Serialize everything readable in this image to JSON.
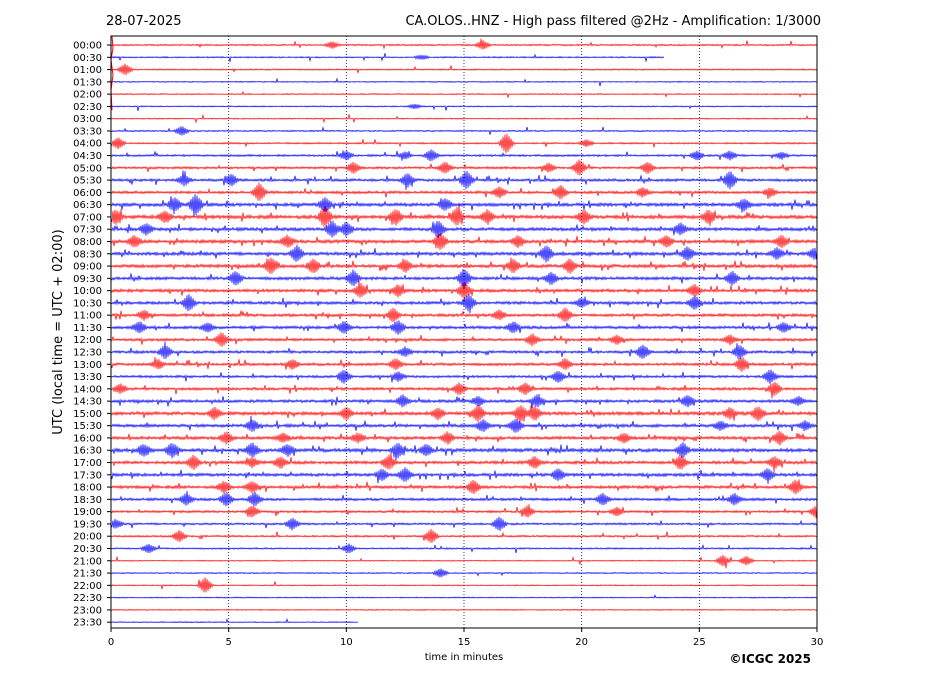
{
  "header": {
    "date": "28-07-2025",
    "title": "CA.OLOS..HNZ - High pass filtered @2Hz - Amplification: 1/3000"
  },
  "footer": {
    "copyright": "©ICGC 2025"
  },
  "colors": {
    "trace_even": "#ff0000",
    "trace_odd": "#0000ff",
    "grid": "#000080",
    "axis": "#000000"
  },
  "chart_data": {
    "type": "line",
    "title": "CA.OLOS..HNZ - High pass filtered @2Hz - Amplification: 1/3000",
    "xlabel": "time in minutes",
    "ylabel": "UTC (local time = UTC + 02:00)",
    "xlim": [
      0,
      30
    ],
    "x_ticks": [
      "0",
      "5",
      "10",
      "15",
      "20",
      "25",
      "30"
    ],
    "grid_x": [
      5,
      10,
      15,
      20,
      25
    ],
    "grid_style": "dotted vertical",
    "series_colors_alternate": [
      "red",
      "blue"
    ],
    "rows": [
      {
        "label": "00:00",
        "level": 0.2,
        "events": [
          [
            9.4,
            0.3
          ],
          [
            15.8,
            0.4
          ]
        ]
      },
      {
        "label": "00:30",
        "level": 0.15,
        "end": 23.5,
        "events": [
          [
            13.2,
            0.2
          ]
        ]
      },
      {
        "label": "01:00",
        "level": 0.15,
        "events": [
          [
            0.6,
            0.5
          ]
        ]
      },
      {
        "label": "01:30",
        "level": 0.1,
        "events": []
      },
      {
        "label": "02:00",
        "level": 0.1,
        "events": []
      },
      {
        "label": "02:30",
        "level": 0.1,
        "events": [
          [
            12.9,
            0.2
          ]
        ]
      },
      {
        "label": "03:00",
        "level": 0.1,
        "events": []
      },
      {
        "label": "03:30",
        "level": 0.15,
        "events": [
          [
            3.0,
            0.4
          ]
        ]
      },
      {
        "label": "04:00",
        "level": 0.2,
        "events": [
          [
            0.3,
            0.5
          ],
          [
            16.8,
            0.9
          ],
          [
            20.2,
            0.3
          ]
        ]
      },
      {
        "label": "04:30",
        "level": 0.3,
        "events": [
          [
            10.0,
            0.4
          ],
          [
            12.5,
            0.3
          ],
          [
            13.6,
            0.5
          ],
          [
            24.9,
            0.4
          ],
          [
            26.3,
            0.4
          ],
          [
            28.5,
            0.3
          ]
        ]
      },
      {
        "label": "05:00",
        "level": 0.35,
        "events": [
          [
            10.3,
            0.5
          ],
          [
            14.2,
            0.5
          ],
          [
            18.6,
            0.4
          ],
          [
            19.9,
            0.7
          ],
          [
            22.8,
            0.5
          ]
        ]
      },
      {
        "label": "05:30",
        "level": 0.45,
        "events": [
          [
            3.1,
            0.5
          ],
          [
            5.1,
            0.5
          ],
          [
            12.6,
            0.6
          ],
          [
            15.1,
            0.8
          ],
          [
            26.3,
            0.8
          ]
        ]
      },
      {
        "label": "06:00",
        "level": 0.45,
        "events": [
          [
            6.3,
            0.8
          ],
          [
            16.5,
            0.5
          ],
          [
            19.1,
            0.6
          ],
          [
            22.6,
            0.4
          ],
          [
            28.0,
            0.4
          ]
        ]
      },
      {
        "label": "06:30",
        "level": 0.6,
        "events": [
          [
            2.7,
            0.6
          ],
          [
            3.6,
            0.9
          ],
          [
            9.1,
            0.6
          ],
          [
            14.2,
            0.5
          ],
          [
            26.9,
            0.5
          ]
        ]
      },
      {
        "label": "07:00",
        "level": 0.65,
        "events": [
          [
            0.2,
            0.6
          ],
          [
            2.3,
            0.5
          ],
          [
            9.1,
            0.9
          ],
          [
            12.1,
            0.7
          ],
          [
            14.7,
            0.8
          ],
          [
            16.0,
            0.6
          ],
          [
            20.1,
            0.6
          ],
          [
            25.4,
            0.6
          ]
        ]
      },
      {
        "label": "07:30",
        "level": 0.6,
        "events": [
          [
            1.5,
            0.5
          ],
          [
            9.4,
            0.7
          ],
          [
            10.0,
            0.6
          ],
          [
            13.9,
            0.7
          ],
          [
            24.2,
            0.5
          ]
        ]
      },
      {
        "label": "08:00",
        "level": 0.6,
        "events": [
          [
            1.0,
            0.5
          ],
          [
            7.5,
            0.5
          ],
          [
            14.0,
            0.7
          ],
          [
            17.3,
            0.5
          ],
          [
            23.6,
            0.5
          ],
          [
            28.5,
            0.5
          ]
        ]
      },
      {
        "label": "08:30",
        "level": 0.6,
        "events": [
          [
            7.9,
            0.7
          ],
          [
            18.5,
            0.7
          ],
          [
            24.5,
            0.6
          ],
          [
            28.3,
            0.5
          ],
          [
            29.9,
            0.5
          ]
        ]
      },
      {
        "label": "09:00",
        "level": 0.6,
        "events": [
          [
            6.8,
            0.7
          ],
          [
            8.6,
            0.6
          ],
          [
            12.5,
            0.5
          ],
          [
            17.1,
            0.6
          ],
          [
            19.5,
            0.6
          ]
        ]
      },
      {
        "label": "09:30",
        "level": 0.55,
        "events": [
          [
            5.3,
            0.6
          ],
          [
            10.3,
            0.7
          ],
          [
            15.0,
            0.8
          ],
          [
            18.7,
            0.5
          ],
          [
            26.4,
            0.6
          ]
        ]
      },
      {
        "label": "10:00",
        "level": 0.55,
        "events": [
          [
            10.6,
            0.6
          ],
          [
            12.2,
            0.5
          ],
          [
            15.0,
            0.7
          ],
          [
            24.8,
            0.5
          ]
        ]
      },
      {
        "label": "10:30",
        "level": 0.5,
        "events": [
          [
            3.3,
            0.7
          ],
          [
            15.2,
            0.7
          ],
          [
            20.0,
            0.4
          ],
          [
            24.8,
            0.6
          ]
        ]
      },
      {
        "label": "11:00",
        "level": 0.5,
        "events": [
          [
            1.4,
            0.4
          ],
          [
            12.0,
            0.6
          ],
          [
            16.5,
            0.4
          ],
          [
            19.3,
            0.6
          ]
        ]
      },
      {
        "label": "11:30",
        "level": 0.5,
        "events": [
          [
            1.2,
            0.5
          ],
          [
            4.1,
            0.4
          ],
          [
            9.9,
            0.5
          ],
          [
            12.2,
            0.6
          ],
          [
            17.1,
            0.5
          ],
          [
            28.6,
            0.4
          ]
        ]
      },
      {
        "label": "12:00",
        "level": 0.45,
        "events": [
          [
            4.7,
            0.6
          ],
          [
            17.9,
            0.5
          ],
          [
            21.5,
            0.4
          ],
          [
            26.3,
            0.4
          ]
        ]
      },
      {
        "label": "12:30",
        "level": 0.45,
        "events": [
          [
            2.3,
            0.6
          ],
          [
            12.5,
            0.4
          ],
          [
            22.6,
            0.6
          ],
          [
            26.7,
            0.6
          ]
        ]
      },
      {
        "label": "13:00",
        "level": 0.45,
        "events": [
          [
            2.0,
            0.4
          ],
          [
            7.7,
            0.4
          ],
          [
            12.1,
            0.5
          ],
          [
            19.3,
            0.5
          ],
          [
            26.8,
            0.6
          ]
        ]
      },
      {
        "label": "13:30",
        "level": 0.4,
        "events": [
          [
            9.9,
            0.6
          ],
          [
            12.2,
            0.4
          ],
          [
            19.0,
            0.5
          ],
          [
            28.0,
            0.6
          ]
        ]
      },
      {
        "label": "14:00",
        "level": 0.45,
        "events": [
          [
            0.4,
            0.4
          ],
          [
            14.8,
            0.5
          ],
          [
            17.6,
            0.5
          ],
          [
            28.2,
            0.6
          ]
        ]
      },
      {
        "label": "14:30",
        "level": 0.5,
        "events": [
          [
            12.4,
            0.5
          ],
          [
            15.6,
            0.4
          ],
          [
            18.1,
            0.5
          ],
          [
            24.5,
            0.5
          ],
          [
            29.2,
            0.4
          ]
        ]
      },
      {
        "label": "15:00",
        "level": 0.6,
        "events": [
          [
            4.4,
            0.5
          ],
          [
            10.0,
            0.5
          ],
          [
            13.9,
            0.5
          ],
          [
            15.6,
            0.7
          ],
          [
            17.4,
            0.7
          ],
          [
            18.0,
            0.6
          ],
          [
            26.3,
            0.5
          ],
          [
            27.5,
            0.6
          ]
        ]
      },
      {
        "label": "15:30",
        "level": 0.55,
        "events": [
          [
            6.0,
            0.5
          ],
          [
            15.8,
            0.5
          ],
          [
            17.2,
            0.6
          ],
          [
            25.9,
            0.4
          ],
          [
            29.5,
            0.4
          ]
        ]
      },
      {
        "label": "16:00",
        "level": 0.55,
        "events": [
          [
            4.9,
            0.5
          ],
          [
            7.3,
            0.4
          ],
          [
            10.5,
            0.4
          ],
          [
            14.3,
            0.5
          ],
          [
            21.8,
            0.4
          ],
          [
            28.4,
            0.6
          ]
        ]
      },
      {
        "label": "16:30",
        "level": 0.65,
        "events": [
          [
            1.4,
            0.5
          ],
          [
            2.6,
            0.6
          ],
          [
            6.0,
            0.6
          ],
          [
            7.5,
            0.5
          ],
          [
            12.2,
            0.6
          ],
          [
            13.4,
            0.5
          ],
          [
            24.3,
            0.6
          ]
        ]
      },
      {
        "label": "17:00",
        "level": 0.55,
        "events": [
          [
            3.5,
            0.6
          ],
          [
            6.0,
            0.4
          ],
          [
            7.2,
            0.5
          ],
          [
            11.8,
            0.6
          ],
          [
            18.0,
            0.5
          ],
          [
            24.2,
            0.6
          ],
          [
            28.2,
            0.5
          ]
        ]
      },
      {
        "label": "17:30",
        "level": 0.55,
        "events": [
          [
            11.5,
            0.5
          ],
          [
            12.5,
            0.6
          ],
          [
            19.0,
            0.5
          ],
          [
            27.9,
            0.5
          ]
        ]
      },
      {
        "label": "18:00",
        "level": 0.5,
        "events": [
          [
            4.8,
            0.5
          ],
          [
            6.0,
            0.5
          ],
          [
            15.4,
            0.6
          ],
          [
            29.1,
            0.6
          ]
        ]
      },
      {
        "label": "18:30",
        "level": 0.45,
        "events": [
          [
            3.2,
            0.5
          ],
          [
            4.9,
            0.6
          ],
          [
            6.1,
            0.6
          ],
          [
            20.9,
            0.5
          ],
          [
            26.5,
            0.5
          ]
        ]
      },
      {
        "label": "19:00",
        "level": 0.35,
        "events": [
          [
            6.0,
            0.5
          ],
          [
            17.7,
            0.5
          ],
          [
            21.5,
            0.4
          ],
          [
            30.0,
            0.6
          ]
        ]
      },
      {
        "label": "19:30",
        "level": 0.3,
        "events": [
          [
            0.2,
            0.4
          ],
          [
            7.7,
            0.5
          ],
          [
            16.5,
            0.6
          ]
        ]
      },
      {
        "label": "20:00",
        "level": 0.25,
        "events": [
          [
            2.9,
            0.5
          ],
          [
            13.6,
            0.6
          ]
        ]
      },
      {
        "label": "20:30",
        "level": 0.2,
        "events": [
          [
            1.6,
            0.4
          ],
          [
            10.1,
            0.4
          ]
        ]
      },
      {
        "label": "21:00",
        "level": 0.1,
        "events": [
          [
            26.0,
            0.5
          ],
          [
            27.0,
            0.4
          ]
        ]
      },
      {
        "label": "21:30",
        "level": 0.1,
        "events": [
          [
            14.0,
            0.4
          ]
        ]
      },
      {
        "label": "22:00",
        "level": 0.1,
        "events": [
          [
            4.0,
            0.7
          ]
        ]
      },
      {
        "label": "22:30",
        "level": 0.08,
        "events": []
      },
      {
        "label": "23:00",
        "level": 0.08,
        "events": []
      },
      {
        "label": "23:30",
        "level": 0.08,
        "end": 10.5,
        "events": []
      }
    ]
  }
}
